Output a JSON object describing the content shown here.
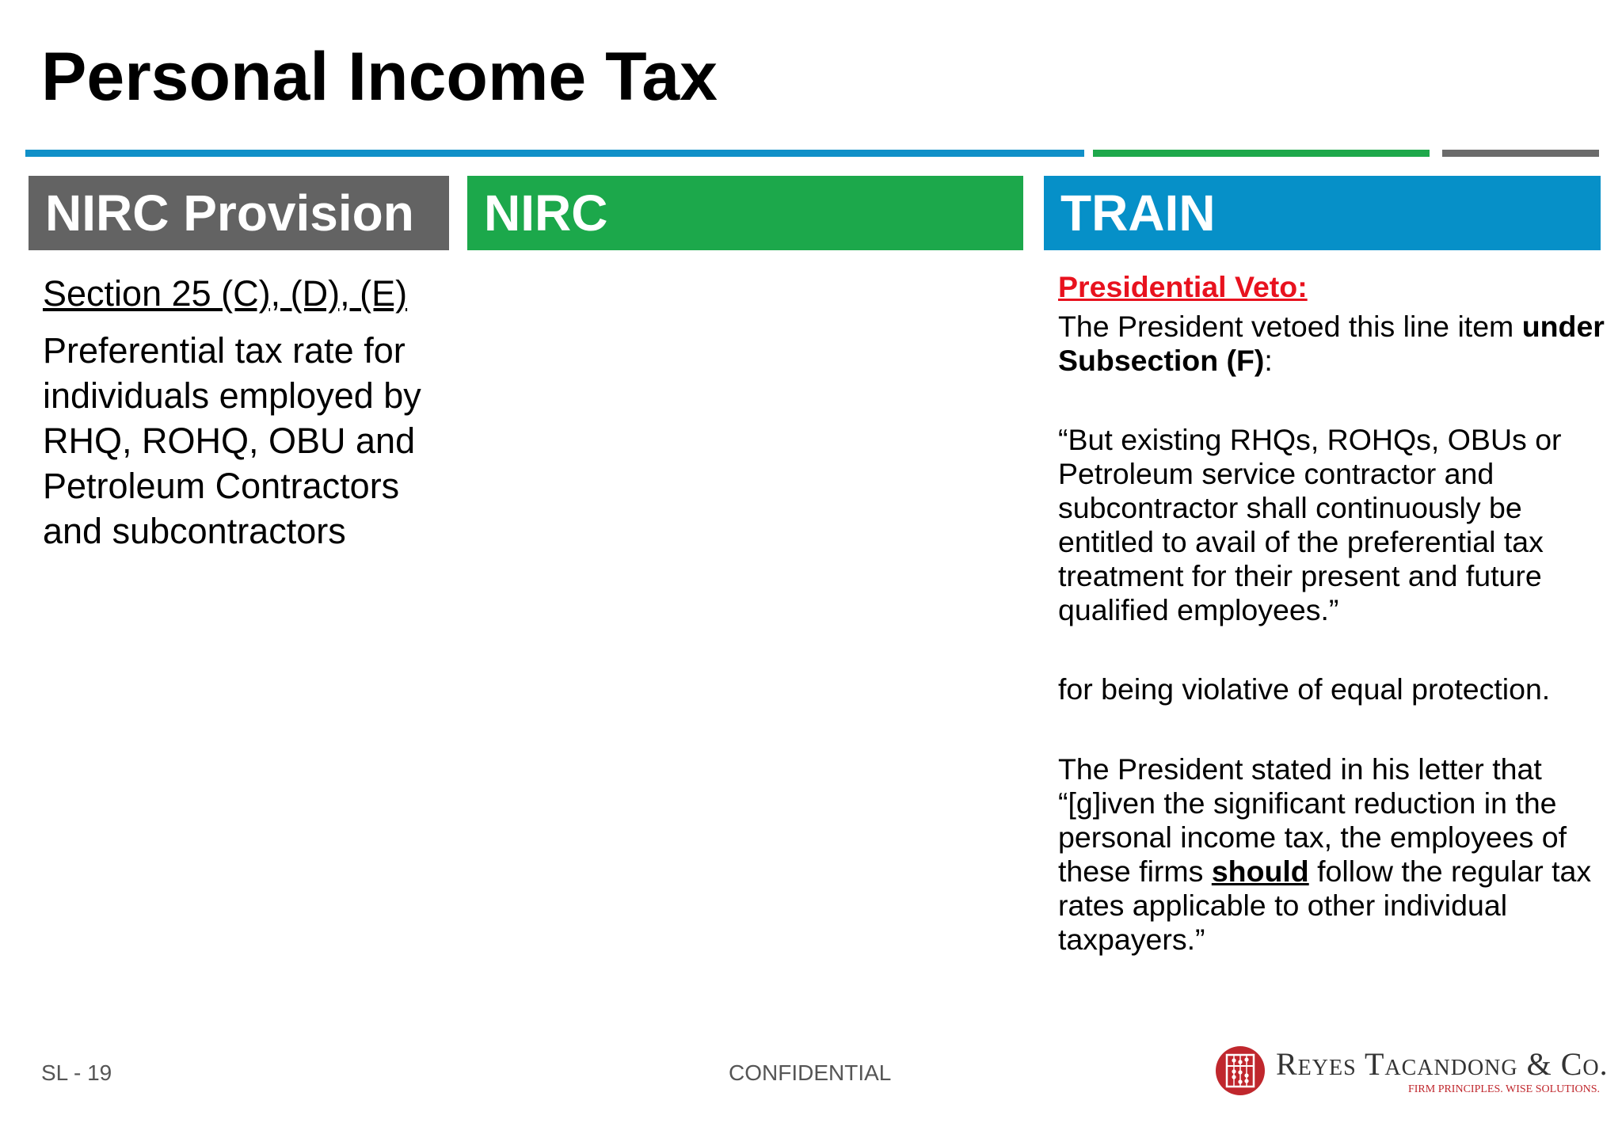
{
  "slide": {
    "title": "Personal Income Tax",
    "columns": {
      "provision": "NIRC Provision",
      "nirc": "NIRC",
      "train": "TRAIN"
    },
    "provision": {
      "section": "Section 25 (C), (D), (E)",
      "description": "Preferential tax rate for individuals employed by RHQ, ROHQ, OBU and Petroleum Contractors and subcontractors"
    },
    "train": {
      "veto_label": "Presidential Veto:",
      "p1_text": "The President vetoed this line item ",
      "p1_bold": "under Subsection (F)",
      "p1_end": ":",
      "quote": "“But existing RHQs, ROHQs, OBUs or Petroleum service contractor and subcontractor shall continuously be entitled to avail of the preferential tax treatment for their present and future qualified employees.”",
      "reason": "for being violative of equal protection.",
      "letter_start": "The President stated in his letter that “[g]iven the significant reduction in the personal income tax, the employees of these firms ",
      "letter_emph": "should",
      "letter_end": " follow the regular tax rates applicable to other individual taxpayers.”"
    },
    "footer": {
      "slide_number": "SL - 19",
      "confidential": "CONFIDENTIAL"
    },
    "logo": {
      "name": "Reyes Tacandong & Co.",
      "tagline": "FIRM PRINCIPLES. WISE SOLUTIONS."
    },
    "colors": {
      "blue": "#1090c8",
      "green": "#1ca84b",
      "gray": "#636363",
      "red": "#e8121e"
    }
  }
}
